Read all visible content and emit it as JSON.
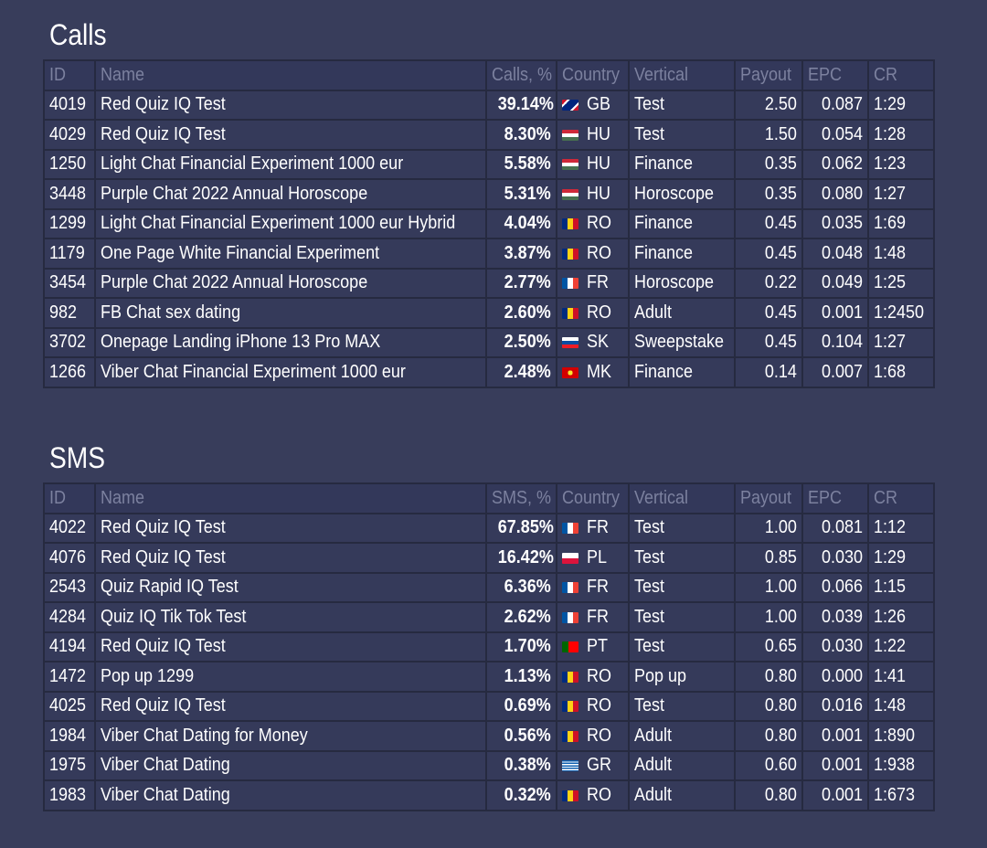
{
  "flags": {
    "GB": "linear-gradient(135deg,#cf142b 0 20%,#fff 20% 30%,#00247d 30% 70%,#fff 70% 80%,#cf142b 80%)",
    "HU": "linear-gradient(#ce2939 0 33%,#fff 33% 66%,#477050 66%)",
    "RO": "linear-gradient(90deg,#002b7f 0 33%,#fcd116 33% 66%,#ce1126 66%)",
    "FR": "linear-gradient(90deg,#0055a4 0 33%,#fff 33% 66%,#ef4135 66%)",
    "SK": "linear-gradient(#fff 0 33%,#0b4ea2 33% 66%,#ee1c25 66%)",
    "MK": "radial-gradient(circle,#f8e92e 0 25%,#d20000 25%)",
    "PL": "linear-gradient(#fff 0 50%,#dc143c 50%)",
    "PT": "linear-gradient(90deg,#006600 0 40%,#ff0000 40%)",
    "GR": "repeating-linear-gradient(#0d5eaf 0 1.4px,#fff 1.4px 2.7px)"
  },
  "tables": [
    {
      "title": "Calls",
      "headers": [
        "ID",
        "Name",
        "Calls, %",
        "Country",
        "Vertical",
        "Payout",
        "EPC",
        "CR"
      ],
      "rows": [
        [
          "4019",
          "Red Quiz IQ Test",
          "39.14%",
          "GB",
          "Test",
          "2.50",
          "0.087",
          "1:29"
        ],
        [
          "4029",
          "Red Quiz IQ Test",
          "8.30%",
          "HU",
          "Test",
          "1.50",
          "0.054",
          "1:28"
        ],
        [
          "1250",
          "Light Chat Financial Experiment 1000 eur",
          "5.58%",
          "HU",
          "Finance",
          "0.35",
          "0.062",
          "1:23"
        ],
        [
          "3448",
          "Purple Chat 2022 Annual Horoscope",
          "5.31%",
          "HU",
          "Horoscope",
          "0.35",
          "0.080",
          "1:27"
        ],
        [
          "1299",
          "Light Chat Financial Experiment 1000 eur Hybrid",
          "4.04%",
          "RO",
          "Finance",
          "0.45",
          "0.035",
          "1:69"
        ],
        [
          "1179",
          "One Page White Financial Experiment",
          "3.87%",
          "RO",
          "Finance",
          "0.45",
          "0.048",
          "1:48"
        ],
        [
          "3454",
          "Purple Chat 2022 Annual Horoscope",
          "2.77%",
          "FR",
          "Horoscope",
          "0.22",
          "0.049",
          "1:25"
        ],
        [
          "982",
          "FB Chat sex dating",
          "2.60%",
          "RO",
          "Adult",
          "0.45",
          "0.001",
          "1:2450"
        ],
        [
          "3702",
          "Onepage Landing iPhone 13 Pro MAX",
          "2.50%",
          "SK",
          "Sweepstake",
          "0.45",
          "0.104",
          "1:27"
        ],
        [
          "1266",
          "Viber Chat Financial Experiment 1000 eur",
          "2.48%",
          "MK",
          "Finance",
          "0.14",
          "0.007",
          "1:68"
        ]
      ]
    },
    {
      "title": "SMS",
      "headers": [
        "ID",
        "Name",
        "SMS, %",
        "Country",
        "Vertical",
        "Payout",
        "EPC",
        "CR"
      ],
      "rows": [
        [
          "4022",
          "Red Quiz IQ Test",
          "67.85%",
          "FR",
          "Test",
          "1.00",
          "0.081",
          "1:12"
        ],
        [
          "4076",
          "Red Quiz IQ Test",
          "16.42%",
          "PL",
          "Test",
          "0.85",
          "0.030",
          "1:29"
        ],
        [
          "2543",
          "Quiz Rapid IQ Test",
          "6.36%",
          "FR",
          "Test",
          "1.00",
          "0.066",
          "1:15"
        ],
        [
          "4284",
          "Quiz IQ Tik Tok Test",
          "2.62%",
          "FR",
          "Test",
          "1.00",
          "0.039",
          "1:26"
        ],
        [
          "4194",
          "Red Quiz IQ Test",
          "1.70%",
          "PT",
          "Test",
          "0.65",
          "0.030",
          "1:22"
        ],
        [
          "1472",
          "Pop up 1299",
          "1.13%",
          "RO",
          "Pop up",
          "0.80",
          "0.000",
          "1:41"
        ],
        [
          "4025",
          "Red Quiz IQ Test",
          "0.69%",
          "RO",
          "Test",
          "0.80",
          "0.016",
          "1:48"
        ],
        [
          "1984",
          "Viber Chat Dating for Money",
          "0.56%",
          "RO",
          "Adult",
          "0.80",
          "0.001",
          "1:890"
        ],
        [
          "1975",
          "Viber Chat Dating",
          "0.38%",
          "GR",
          "Adult",
          "0.60",
          "0.001",
          "1:938"
        ],
        [
          "1983",
          "Viber Chat Dating",
          "0.32%",
          "RO",
          "Adult",
          "0.80",
          "0.001",
          "1:673"
        ]
      ]
    }
  ]
}
